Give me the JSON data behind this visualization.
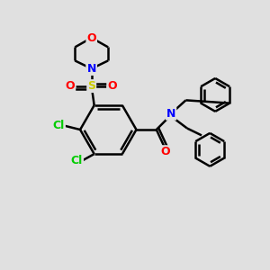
{
  "background_color": "#e0e0e0",
  "bond_color": "#000000",
  "bond_width": 1.8,
  "atom_colors": {
    "O": "#ff0000",
    "N": "#0000ff",
    "S": "#cccc00",
    "Cl": "#00cc00"
  },
  "figsize": [
    3.0,
    3.0
  ],
  "dpi": 100
}
